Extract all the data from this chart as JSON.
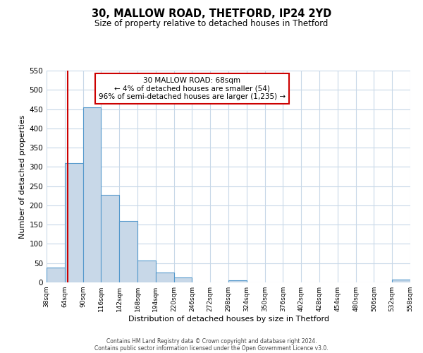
{
  "title": "30, MALLOW ROAD, THETFORD, IP24 2YD",
  "subtitle": "Size of property relative to detached houses in Thetford",
  "xlabel": "Distribution of detached houses by size in Thetford",
  "ylabel": "Number of detached properties",
  "bin_edges": [
    38,
    64,
    90,
    116,
    142,
    168,
    194,
    220,
    246,
    272,
    298,
    324,
    350,
    376,
    402,
    428,
    454,
    480,
    506,
    532,
    558
  ],
  "bar_heights": [
    38,
    310,
    455,
    228,
    159,
    57,
    26,
    12,
    0,
    0,
    5,
    0,
    0,
    0,
    0,
    0,
    0,
    0,
    0,
    8
  ],
  "bar_color": "#c8d8e8",
  "bar_edgecolor": "#5599cc",
  "ylim": [
    0,
    550
  ],
  "yticks": [
    0,
    50,
    100,
    150,
    200,
    250,
    300,
    350,
    400,
    450,
    500,
    550
  ],
  "vline_x": 68,
  "vline_color": "#cc0000",
  "annotation_title": "30 MALLOW ROAD: 68sqm",
  "annotation_line1": "← 4% of detached houses are smaller (54)",
  "annotation_line2": "96% of semi-detached houses are larger (1,235) →",
  "annotation_box_color": "#ffffff",
  "annotation_box_edgecolor": "#cc0000",
  "footer_line1": "Contains HM Land Registry data © Crown copyright and database right 2024.",
  "footer_line2": "Contains public sector information licensed under the Open Government Licence v3.0.",
  "tick_labels": [
    "38sqm",
    "64sqm",
    "90sqm",
    "116sqm",
    "142sqm",
    "168sqm",
    "194sqm",
    "220sqm",
    "246sqm",
    "272sqm",
    "298sqm",
    "324sqm",
    "350sqm",
    "376sqm",
    "402sqm",
    "428sqm",
    "454sqm",
    "480sqm",
    "506sqm",
    "532sqm",
    "558sqm"
  ],
  "background_color": "#ffffff",
  "grid_color": "#c8d8e8"
}
